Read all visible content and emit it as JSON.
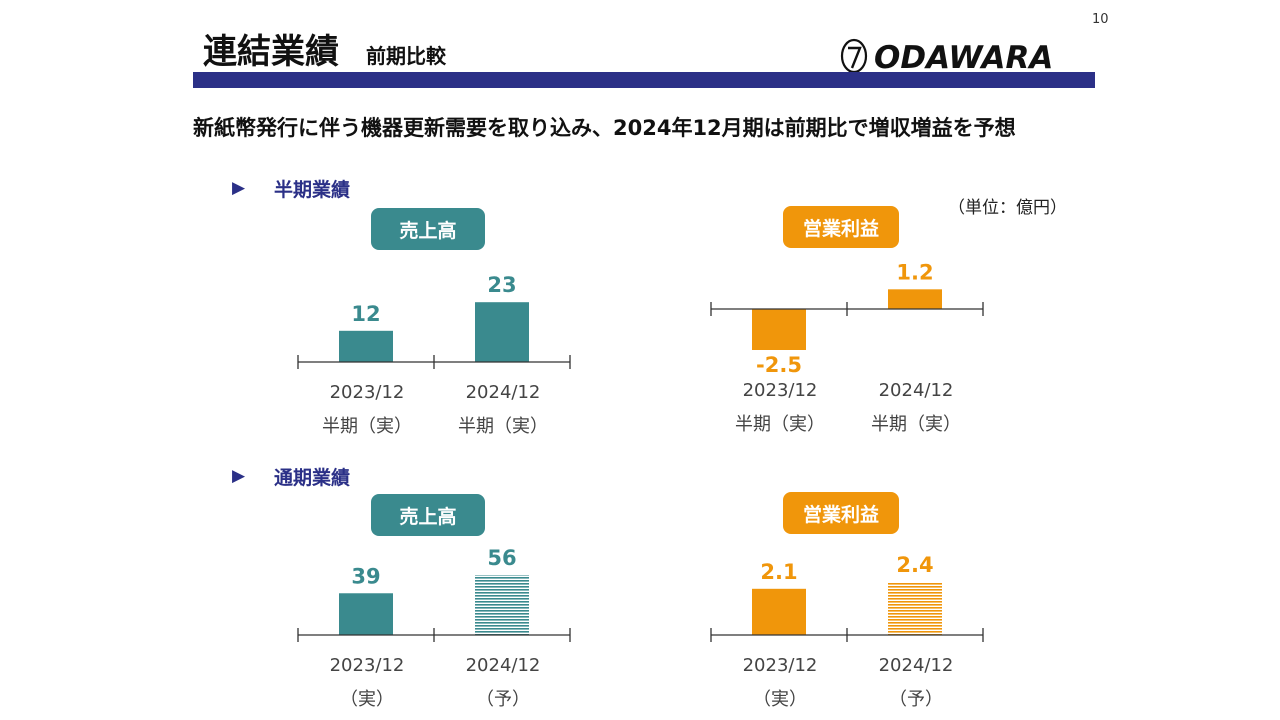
{
  "page_number": "10",
  "title": "連結業績",
  "subtitle": "前期比較",
  "logo_text": "ODAWARA",
  "headline": "新紙幣発行に伴う機器更新需要を取り込み、2024年12月期は前期比で増収増益を予想",
  "unit": "（単位：億円）",
  "section_marker": "▶",
  "sections": {
    "half": {
      "title": "半期業績"
    },
    "full": {
      "title": "通期業績"
    }
  },
  "colors": {
    "teal": "#3a8a8e",
    "orange": "#f0960b",
    "navy": "#2b3087"
  },
  "chart_data": [
    {
      "type": "bar",
      "title": "売上高",
      "section": "半期業績",
      "categories": [
        "2023/12",
        "2024/12"
      ],
      "category_sublabels": [
        "半期（実）",
        "半期（実）"
      ],
      "values": [
        12,
        23
      ],
      "labels": [
        "12",
        "23"
      ],
      "forecast": [
        false,
        false
      ],
      "color": "#3a8a8e"
    },
    {
      "type": "bar",
      "title": "営業利益",
      "section": "半期業績",
      "categories": [
        "2023/12",
        "2024/12"
      ],
      "category_sublabels": [
        "半期（実）",
        "半期（実）"
      ],
      "values": [
        -2.5,
        1.2
      ],
      "labels": [
        "-2.5",
        "1.2"
      ],
      "forecast": [
        false,
        false
      ],
      "color": "#f0960b"
    },
    {
      "type": "bar",
      "title": "売上高",
      "section": "通期業績",
      "categories": [
        "2023/12",
        "2024/12"
      ],
      "category_sublabels": [
        "（実）",
        "（予）"
      ],
      "values": [
        39,
        56
      ],
      "labels": [
        "39",
        "56"
      ],
      "forecast": [
        false,
        true
      ],
      "color": "#3a8a8e"
    },
    {
      "type": "bar",
      "title": "営業利益",
      "section": "通期業績",
      "categories": [
        "2023/12",
        "2024/12"
      ],
      "category_sublabels": [
        "（実）",
        "（予）"
      ],
      "values": [
        2.1,
        2.4
      ],
      "labels": [
        "2.1",
        "2.4"
      ],
      "forecast": [
        false,
        true
      ],
      "color": "#f0960b"
    }
  ]
}
